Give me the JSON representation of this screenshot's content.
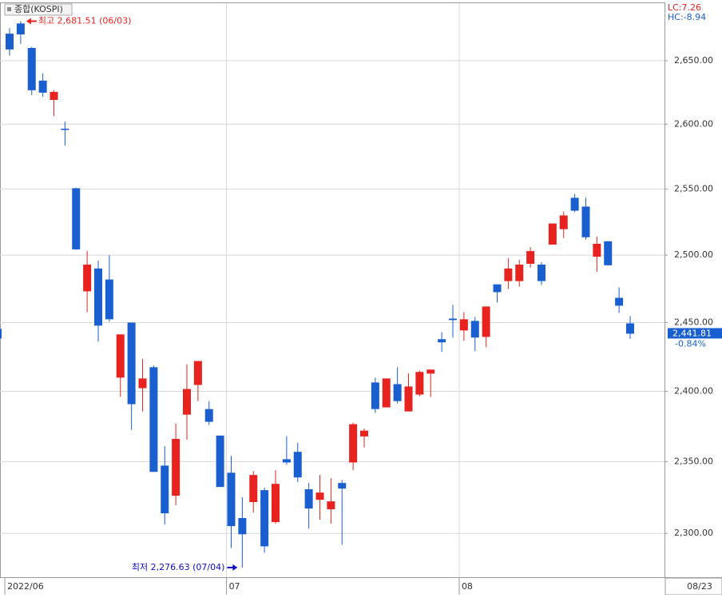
{
  "chart_data": {
    "type": "candlestick",
    "legend": "종합(KOSPI)",
    "categories": [
      "2022/06",
      null,
      null,
      null,
      null,
      null,
      null,
      null,
      null,
      null,
      null,
      null,
      null,
      null,
      null,
      null,
      null,
      null,
      null,
      null,
      "07",
      null,
      null,
      null,
      null,
      null,
      null,
      null,
      null,
      null,
      null,
      null,
      null,
      null,
      null,
      null,
      null,
      null,
      null,
      null,
      null,
      "08",
      null,
      null,
      null,
      null,
      null,
      null,
      null,
      null,
      null,
      null,
      null,
      null,
      null,
      null,
      null
    ],
    "last_date": "08/23",
    "open": [
      2671.5,
      2679.7,
      2660.1,
      2634.2,
      2619,
      2596.5,
      2550.6,
      2473,
      2490,
      2481.8,
      2409.9,
      2450,
      2402.3,
      2417.4,
      2347.2,
      2326.1,
      2383.3,
      2404.6,
      2387.3,
      2368.4,
      2342.2,
      2310.6,
      2321.7,
      2330,
      2307.8,
      2351.7,
      2356.9,
      2330.6,
      2323.3,
      2316.7,
      2335,
      2349.4,
      2367.8,
      2406.4,
      2388.5,
      2405.2,
      2385.6,
      2397.7,
      2412.8,
      2437.8,
      2452.9,
      2444.2,
      2451.2,
      2439.5,
      2478.2,
      2480.6,
      2480.6,
      2493.5,
      2492.9,
      2507.9,
      2519.5,
      2543.3,
      2536.6,
      2498.8,
      2510.4,
      2468.2,
      2449.4
    ],
    "high": [
      2676,
      2681.51,
      2661,
      2640,
      2626.6,
      2602,
      2551,
      2503,
      2495.9,
      2500,
      2441.3,
      2450,
      2423.3,
      2418.6,
      2360.9,
      2377,
      2419.5,
      2421.9,
      2393,
      2368.4,
      2354,
      2325,
      2343.3,
      2331.7,
      2343.9,
      2368,
      2363.2,
      2335,
      2340.6,
      2338.3,
      2337.2,
      2377.6,
      2373.5,
      2409.9,
      2409.3,
      2417.4,
      2412.8,
      2415.1,
      2415.7,
      2443,
      2463,
      2457.6,
      2454.1,
      2461.8,
      2478.2,
      2497.6,
      2496.5,
      2506,
      2494.7,
      2523.8,
      2532.9,
      2546.3,
      2543.3,
      2514,
      2510.4,
      2475.9,
      2454.7
    ],
    "low": [
      2654,
      2663.3,
      2622.8,
      2621.5,
      2606.3,
      2583.5,
      2504,
      2457.6,
      2436,
      2450.6,
      2396,
      2372.4,
      2385.6,
      2342.8,
      2306.1,
      2319.4,
      2365.5,
      2393,
      2375.9,
      2332.2,
      2290,
      2276.63,
      2314.4,
      2286.7,
      2306.7,
      2347.8,
      2335.5,
      2303.3,
      2309.5,
      2306.7,
      2292.2,
      2343.9,
      2360,
      2384.5,
      2388.5,
      2391.3,
      2385.6,
      2396.5,
      2396,
      2428.5,
      2439,
      2436.6,
      2429.1,
      2432,
      2464.7,
      2474.7,
      2476.5,
      2490.6,
      2477.6,
      2507.9,
      2512.8,
      2532.3,
      2511.6,
      2487.6,
      2492.4,
      2457.1,
      2438
    ],
    "close": [
      2658.9,
      2670.9,
      2626.6,
      2624.7,
      2625.3,
      2596,
      2504.3,
      2492.9,
      2447.7,
      2452.4,
      2441.3,
      2390.8,
      2409.3,
      2342.8,
      2313.9,
      2366.1,
      2401.7,
      2421.9,
      2378.2,
      2332.2,
      2305,
      2299.4,
      2340.6,
      2291.1,
      2334.4,
      2349.4,
      2338.9,
      2317.2,
      2328.3,
      2322.2,
      2331.1,
      2376.5,
      2371.9,
      2387.3,
      2409.3,
      2393,
      2403.5,
      2414,
      2415.7,
      2435.5,
      2451.8,
      2452.4,
      2439,
      2461.8,
      2472.4,
      2490,
      2492.9,
      2503,
      2480.6,
      2523.8,
      2529.9,
      2533.5,
      2513.4,
      2508.5,
      2492.4,
      2462.4,
      2441.81
    ],
    "up_color": "#e8231f",
    "down_color": "#1a5fd0",
    "ylim": [
      2270,
      2696
    ],
    "log_scale": true,
    "grid": true,
    "yticks": [
      {
        "value": 2300,
        "label": "2,300.00"
      },
      {
        "value": 2350,
        "label": "2,350.00"
      },
      {
        "value": 2400,
        "label": "2,400.00"
      },
      {
        "value": 2450,
        "label": "2,450.00"
      },
      {
        "value": 2500,
        "label": "2,500.00"
      },
      {
        "value": 2550,
        "label": "2,550.00"
      },
      {
        "value": 2600,
        "label": "2,600.00"
      },
      {
        "value": 2650,
        "label": "2,650.00"
      }
    ],
    "high_annotation": "최고 2,681.51 (06/03)",
    "low_annotation": "최저 2,276.63 (07/04)",
    "last_close_label": "2,441.81",
    "change_label": "-0.84%",
    "lc_label": "LC:7.26",
    "hc_label": "HC:-8.94"
  }
}
